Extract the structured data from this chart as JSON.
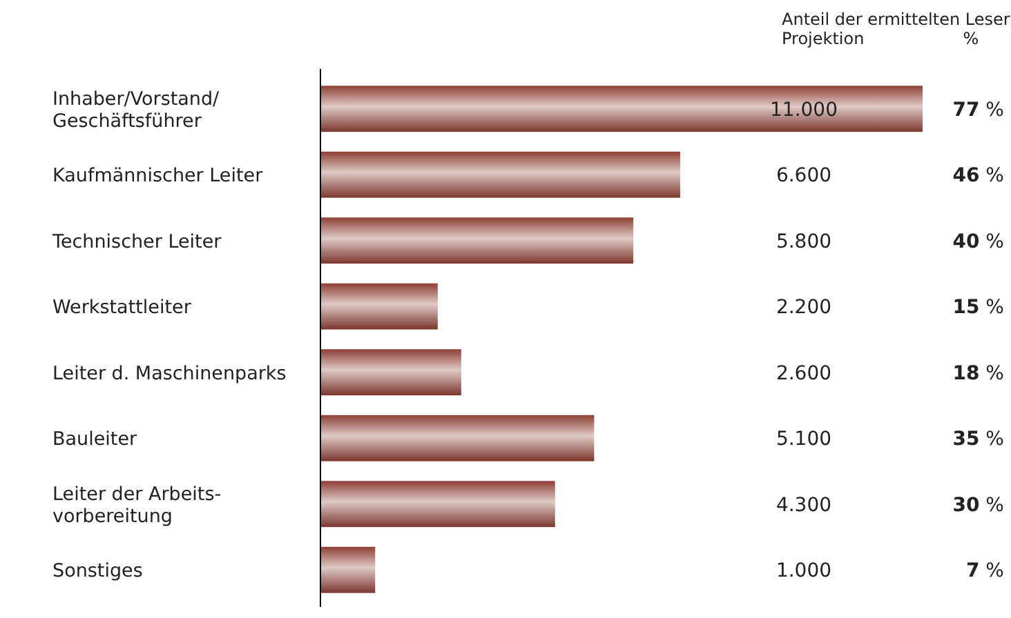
{
  "chart_data": {
    "type": "bar",
    "orientation": "horizontal",
    "categories": [
      "Inhaber/Vorstand/\nGeschäftsführer",
      "Kaufmännischer Leiter",
      "Technischer Leiter",
      "Werkstattleiter",
      "Leiter d. Maschinenparks",
      "Bauleiter",
      "Leiter der Arbeits-\nvorbereitung",
      "Sonstiges"
    ],
    "values": [
      77,
      46,
      40,
      15,
      18,
      35,
      30,
      7
    ],
    "value_labels": [
      "77 %",
      "46 %",
      "40 %",
      "15 %",
      "18 %",
      "35 %",
      "30 %",
      "7 %"
    ],
    "color": "#8e3f33",
    "annotations": [
      "Anteil der ermittelten Leser",
      "Projektion",
      "%",
      "11.000",
      "6.600",
      "5.800",
      "2.200",
      "2.600",
      "5.100",
      "4.300",
      "1.000"
    ]
  }
}
